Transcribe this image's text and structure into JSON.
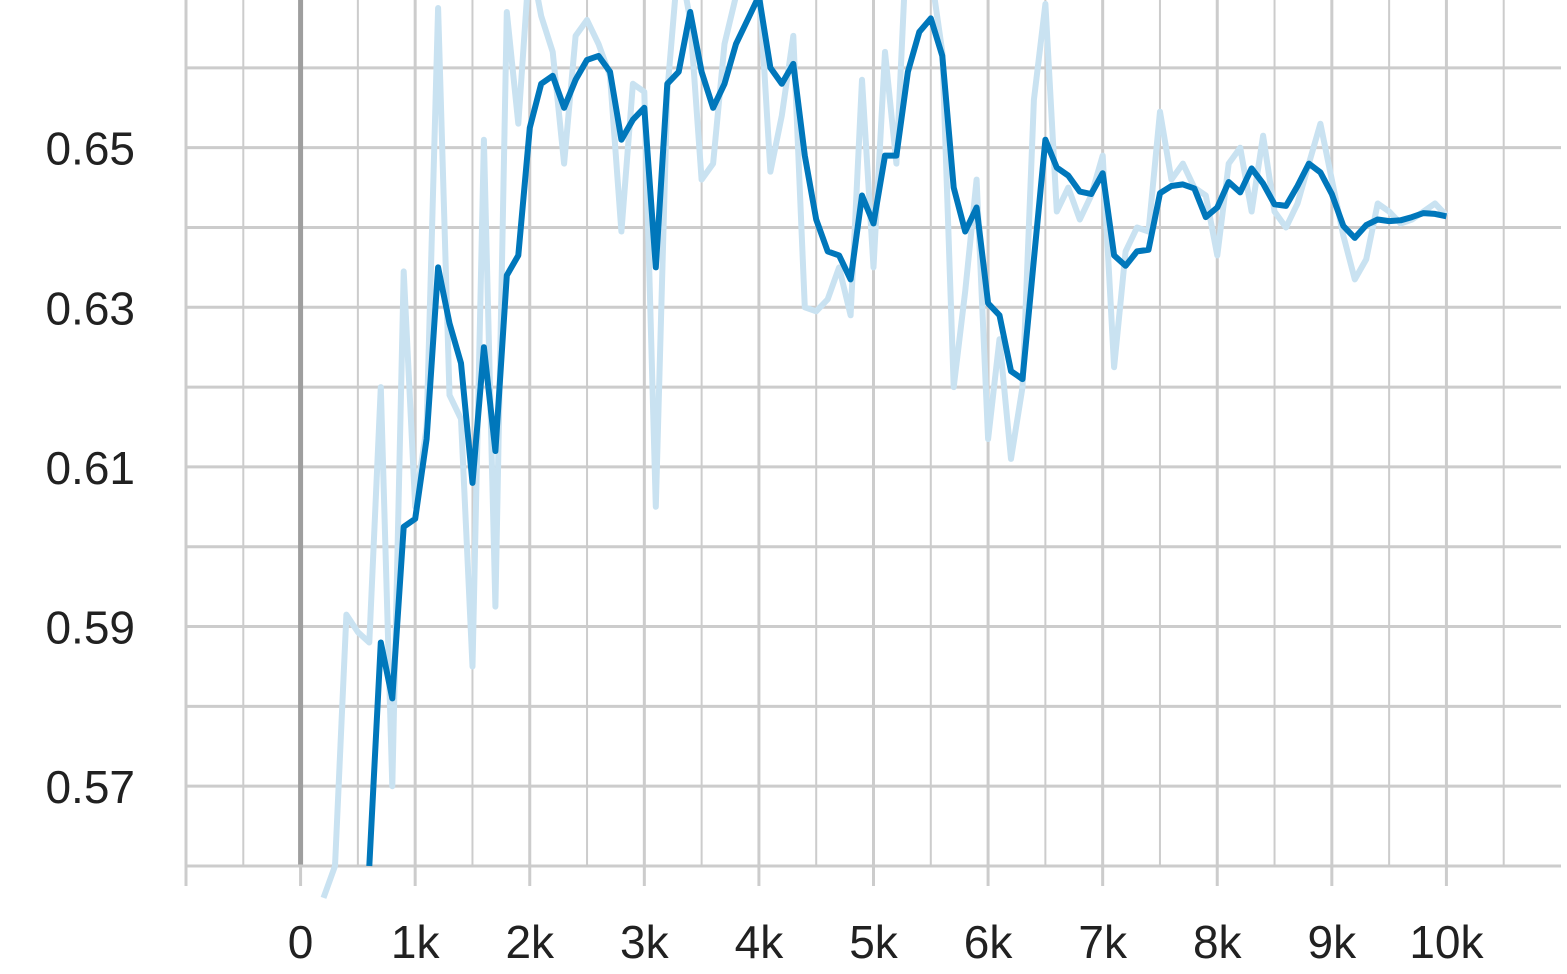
{
  "chart_data": {
    "type": "line",
    "title": "",
    "xlabel": "",
    "ylabel": "",
    "xlim": [
      -1000,
      11000
    ],
    "ylim": [
      0.56,
      0.6685
    ],
    "x_ticks": [
      0,
      1000,
      2000,
      3000,
      4000,
      5000,
      6000,
      7000,
      8000,
      9000,
      10000
    ],
    "x_tick_labels": [
      "0",
      "1k",
      "2k",
      "3k",
      "4k",
      "5k",
      "6k",
      "7k",
      "8k",
      "9k",
      "10k"
    ],
    "y_ticks": [
      0.57,
      0.59,
      0.61,
      0.63,
      0.65
    ],
    "y_tick_labels": [
      "0.57",
      "0.59",
      "0.61",
      "0.63",
      "0.65"
    ],
    "grid": true,
    "legend": "none",
    "colors": {
      "smoothed": "#0077bb",
      "raw": "#c9e2f1",
      "grid": "#cccccc",
      "zero_line": "#9e9e9e"
    },
    "series": [
      {
        "role": "raw",
        "x": [
          200,
          300,
          400,
          500,
          600,
          700,
          800,
          900,
          1000,
          1100,
          1200,
          1300,
          1400,
          1500,
          1600,
          1700,
          1800,
          1900,
          2000,
          2100,
          2200,
          2300,
          2400,
          2500,
          2600,
          2700,
          2800,
          2900,
          3000,
          3100,
          3200,
          3300,
          3400,
          3500,
          3600,
          3700,
          3800,
          3900,
          4000,
          4100,
          4200,
          4300,
          4400,
          4500,
          4600,
          4700,
          4800,
          4900,
          5000,
          5100,
          5200,
          5300,
          5400,
          5500,
          5600,
          5700,
          5800,
          5900,
          6000,
          6100,
          6200,
          6300,
          6400,
          6500,
          6600,
          6700,
          6800,
          6900,
          7000,
          7100,
          7200,
          7300,
          7400,
          7500,
          7600,
          7700,
          7800,
          7900,
          8000,
          8100,
          8200,
          8300,
          8400,
          8500,
          8600,
          8700,
          8800,
          8900,
          9000,
          9100,
          9200,
          9300,
          9400,
          9500,
          9600,
          9700,
          9800,
          9900,
          10000
        ],
        "y": [
          0.556,
          0.56,
          0.5915,
          0.5893,
          0.588,
          0.62,
          0.57,
          0.6345,
          0.605,
          0.615,
          0.6675,
          0.619,
          0.616,
          0.585,
          0.651,
          0.5925,
          0.667,
          0.653,
          0.674,
          0.6665,
          0.662,
          0.648,
          0.664,
          0.666,
          0.663,
          0.659,
          0.6395,
          0.658,
          0.657,
          0.605,
          0.657,
          0.674,
          0.666,
          0.646,
          0.648,
          0.663,
          0.669,
          0.672,
          0.671,
          0.647,
          0.654,
          0.664,
          0.63,
          0.6295,
          0.631,
          0.635,
          0.629,
          0.6585,
          0.635,
          0.662,
          0.648,
          0.679,
          0.673,
          0.672,
          0.662,
          0.62,
          0.632,
          0.646,
          0.6135,
          0.626,
          0.611,
          0.62,
          0.656,
          0.668,
          0.642,
          0.645,
          0.641,
          0.644,
          0.649,
          0.6225,
          0.637,
          0.64,
          0.6395,
          0.6545,
          0.646,
          0.648,
          0.645,
          0.644,
          0.6365,
          0.648,
          0.65,
          0.642,
          0.6515,
          0.642,
          0.64,
          0.643,
          0.648,
          0.653,
          0.646,
          0.639,
          0.6335,
          0.636,
          0.643,
          0.642,
          0.6405,
          0.641,
          0.642,
          0.643,
          0.6415
        ]
      },
      {
        "role": "smoothed",
        "x": [
          600,
          700,
          800,
          900,
          1000,
          1100,
          1200,
          1300,
          1400,
          1500,
          1600,
          1700,
          1800,
          1900,
          2000,
          2100,
          2200,
          2300,
          2400,
          2500,
          2600,
          2700,
          2800,
          2900,
          3000,
          3100,
          3200,
          3300,
          3400,
          3500,
          3600,
          3700,
          3800,
          3900,
          4000,
          4100,
          4200,
          4300,
          4400,
          4500,
          4600,
          4700,
          4800,
          4900,
          5000,
          5100,
          5200,
          5300,
          5400,
          5500,
          5600,
          5700,
          5800,
          5900,
          6000,
          6100,
          6200,
          6300,
          6400,
          6500,
          6600,
          6700,
          6800,
          6900,
          7000,
          7100,
          7200,
          7300,
          7400,
          7500,
          7600,
          7700,
          7800,
          7900,
          8000,
          8100,
          8200,
          8300,
          8400,
          8500,
          8600,
          8700,
          8800,
          8900,
          9000,
          9100,
          9200,
          9300,
          9400,
          9500,
          9600,
          9700,
          9800,
          9900,
          10000
        ],
        "y": [
          0.56,
          0.588,
          0.581,
          0.6025,
          0.6035,
          0.6135,
          0.635,
          0.628,
          0.623,
          0.608,
          0.625,
          0.612,
          0.634,
          0.6365,
          0.6525,
          0.658,
          0.659,
          0.655,
          0.6585,
          0.661,
          0.6615,
          0.6595,
          0.651,
          0.6535,
          0.655,
          0.635,
          0.658,
          0.6595,
          0.667,
          0.6595,
          0.655,
          0.658,
          0.663,
          0.666,
          0.669,
          0.66,
          0.658,
          0.6605,
          0.649,
          0.641,
          0.637,
          0.6365,
          0.6335,
          0.644,
          0.6405,
          0.649,
          0.649,
          0.6595,
          0.6645,
          0.6662,
          0.6615,
          0.645,
          0.6395,
          0.6425,
          0.6305,
          0.629,
          0.622,
          0.621,
          0.636,
          0.651,
          0.6475,
          0.6465,
          0.6445,
          0.6442,
          0.6468,
          0.6365,
          0.6352,
          0.637,
          0.6372,
          0.6443,
          0.6452,
          0.6454,
          0.6449,
          0.6413,
          0.6425,
          0.6457,
          0.6444,
          0.6474,
          0.6455,
          0.6429,
          0.6427,
          0.6452,
          0.648,
          0.6469,
          0.6442,
          0.6402,
          0.6387,
          0.6403,
          0.641,
          0.6408,
          0.6409,
          0.6413,
          0.6418,
          0.6417,
          0.6414
        ]
      }
    ]
  }
}
